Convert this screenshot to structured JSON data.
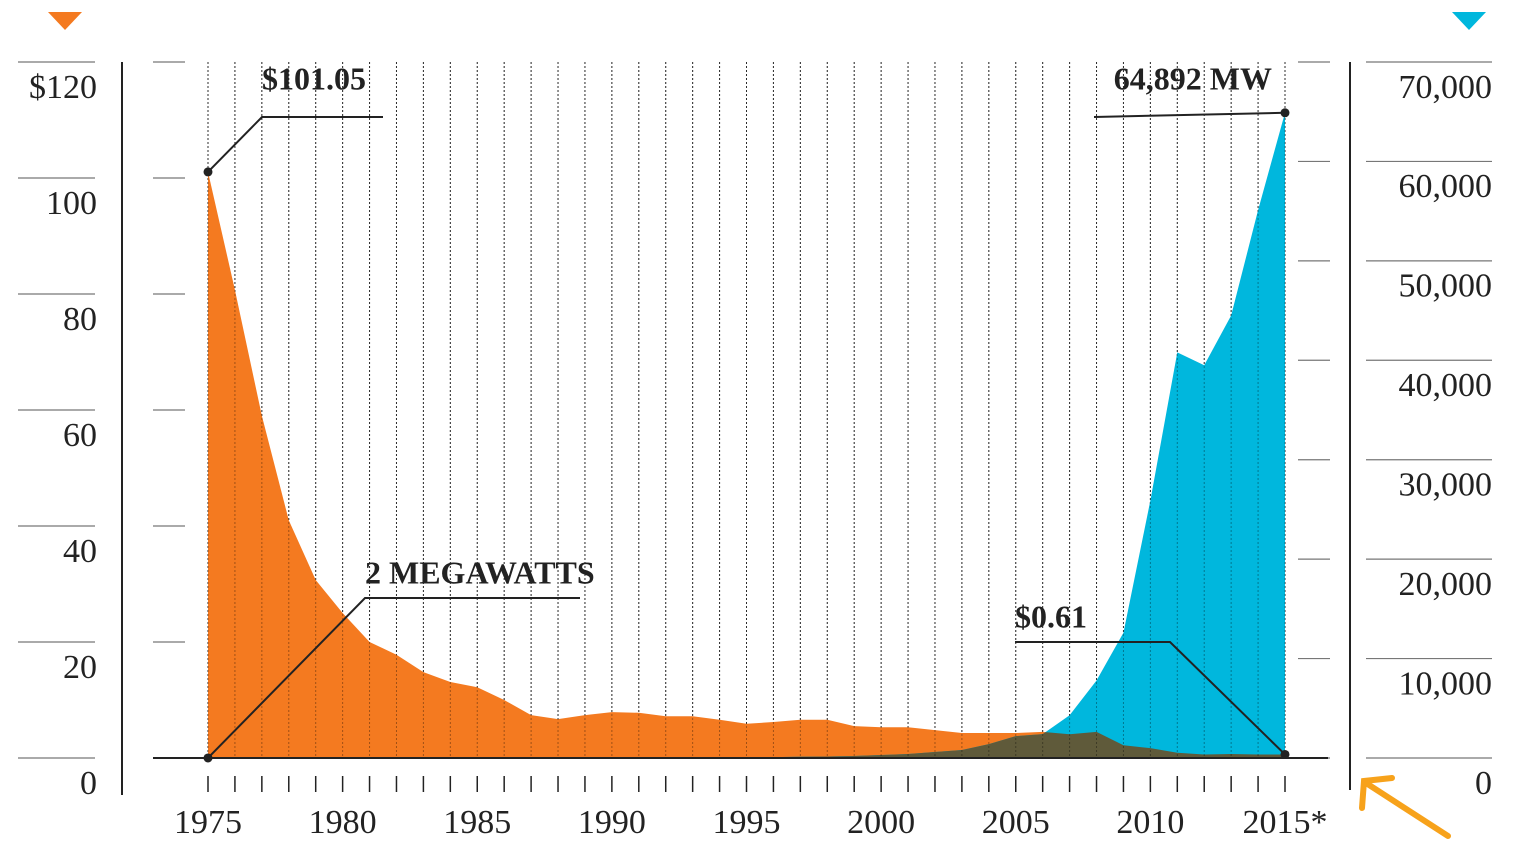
{
  "chart_data": {
    "type": "area",
    "x": [
      1975,
      1976,
      1977,
      1978,
      1979,
      1980,
      1981,
      1982,
      1983,
      1984,
      1985,
      1986,
      1987,
      1988,
      1989,
      1990,
      1991,
      1992,
      1993,
      1994,
      1995,
      1996,
      1997,
      1998,
      1999,
      2000,
      2001,
      2002,
      2003,
      2004,
      2005,
      2006,
      2007,
      2008,
      2009,
      2010,
      2011,
      2012,
      2013,
      2014,
      2015
    ],
    "xlim": [
      1975,
      2015
    ],
    "xticks": [
      1975,
      1980,
      1985,
      1990,
      1995,
      2000,
      2005,
      2010,
      {
        "value": 2015,
        "label": "2015*"
      }
    ],
    "series": [
      {
        "color": "#f47a20",
        "axis": "y",
        "values": [
          101.05,
          80.7,
          59,
          41,
          30.7,
          25,
          20,
          17.8,
          14.8,
          13.1,
          12.2,
          10,
          7.4,
          6.7,
          7.4,
          7.9,
          7.8,
          7.2,
          7.2,
          6.6,
          5.9,
          6.2,
          6.6,
          6.6,
          5.5,
          5.3,
          5.3,
          4.8,
          4.3,
          4.3,
          4.3,
          4.5,
          4.1,
          4.5,
          2.2,
          1.7,
          0.9,
          0.6,
          0.7,
          0.6,
          0.61
        ]
      },
      {
        "color": "#00b7dd",
        "axis": "y2",
        "values": [
          2,
          2,
          3,
          4,
          5,
          7,
          9,
          12,
          16,
          20,
          25,
          30,
          35,
          38,
          42,
          46,
          52,
          58,
          63,
          70,
          78,
          90,
          125,
          153,
          201,
          300,
          400,
          600,
          800,
          1400,
          2200,
          2400,
          4300,
          7800,
          12600,
          25900,
          40800,
          39500,
          44500,
          55100,
          64892
        ]
      }
    ],
    "overlap_color": "#5f5a3a",
    "ylim": [
      0,
      120
    ],
    "yticks": [
      0,
      20,
      40,
      60,
      80,
      100,
      {
        "value": 120,
        "label": "$120"
      }
    ],
    "y2lim": [
      0,
      70000
    ],
    "y2ticks": [
      0,
      {
        "value": 10000,
        "label": "10,000"
      },
      {
        "value": 20000,
        "label": "20,000"
      },
      {
        "value": 30000,
        "label": "30,000"
      },
      {
        "value": 40000,
        "label": "40,000"
      },
      {
        "value": 50000,
        "label": "50,000"
      },
      {
        "value": 60000,
        "label": "60,000"
      },
      {
        "value": 70000,
        "label": "70,000"
      }
    ],
    "annotations": [
      {
        "text": "$101.05"
      },
      {
        "text": "2 MEGAWATTS"
      },
      {
        "text": "$0.61"
      },
      {
        "text": "64,892 MW"
      }
    ]
  }
}
